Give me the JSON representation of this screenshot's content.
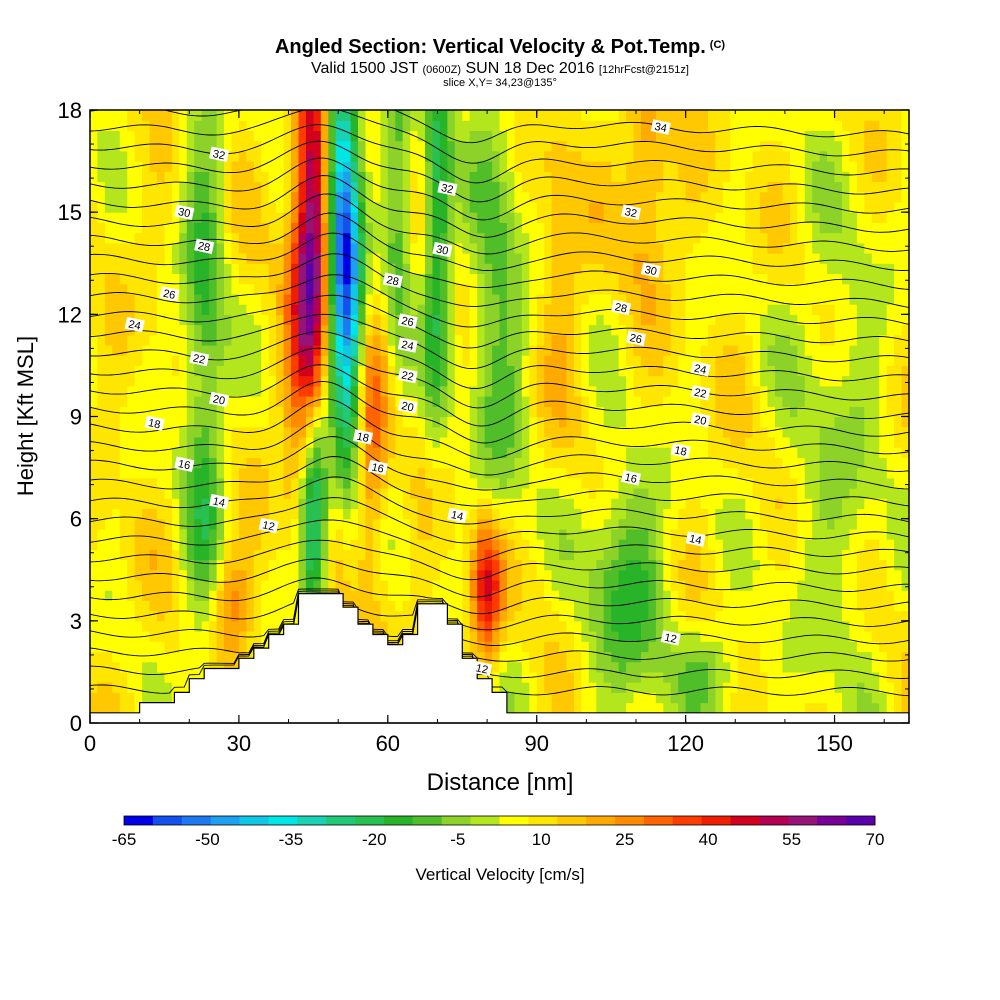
{
  "title": {
    "main": "Angled Section: Vertical Velocity & Pot.Temp.",
    "main_suffix": "(C)",
    "valid_pre": "Valid 1500 JST",
    "valid_utc": "(0600Z)",
    "valid_post": "SUN 18 Dec 2016",
    "valid_fcst": "[12hrFcst@2151z]",
    "slice": "slice X,Y= 34,23@135°"
  },
  "chart_data": {
    "type": "heatmap",
    "xlabel": "Distance [nm]",
    "ylabel": "Height [Kft MSL]",
    "xlim": [
      0,
      165
    ],
    "ylim": [
      0,
      18
    ],
    "x_ticks": [
      0,
      30,
      60,
      90,
      120,
      150
    ],
    "y_ticks": [
      0,
      3,
      6,
      9,
      12,
      15,
      18
    ],
    "colorbar": {
      "label": "Vertical Velocity [cm/s]",
      "min": -65,
      "max": 70,
      "step": 5,
      "tick_labels": [
        -65,
        -50,
        -35,
        -20,
        -5,
        10,
        25,
        40,
        55,
        70
      ],
      "colors": [
        "#0000e6",
        "#1450ee",
        "#1e78f0",
        "#1ea0f0",
        "#10c8e6",
        "#00e6e6",
        "#18d2b4",
        "#20c878",
        "#28c050",
        "#28b428",
        "#50be28",
        "#8cd228",
        "#b4e61e",
        "#ffff00",
        "#ffe600",
        "#ffc800",
        "#ffaa00",
        "#ff8c00",
        "#ff6400",
        "#ff3c00",
        "#f01e00",
        "#d2001e",
        "#b40050",
        "#961478",
        "#780096",
        "#5a00aa"
      ]
    },
    "terrain_profile_nm_kft": [
      [
        0,
        0.3
      ],
      [
        10,
        0.3
      ],
      [
        10,
        0.6
      ],
      [
        17,
        0.6
      ],
      [
        17,
        0.9
      ],
      [
        20,
        0.9
      ],
      [
        20,
        1.3
      ],
      [
        23,
        1.3
      ],
      [
        23,
        1.6
      ],
      [
        30,
        1.6
      ],
      [
        30,
        1.9
      ],
      [
        33,
        1.9
      ],
      [
        33,
        2.2
      ],
      [
        36,
        2.2
      ],
      [
        36,
        2.6
      ],
      [
        39,
        2.6
      ],
      [
        39,
        2.9
      ],
      [
        42,
        2.9
      ],
      [
        42,
        3.8
      ],
      [
        51,
        3.8
      ],
      [
        51,
        3.4
      ],
      [
        54,
        3.4
      ],
      [
        54,
        2.9
      ],
      [
        57,
        2.9
      ],
      [
        57,
        2.6
      ],
      [
        60,
        2.6
      ],
      [
        60,
        2.3
      ],
      [
        63,
        2.3
      ],
      [
        63,
        2.6
      ],
      [
        66,
        2.6
      ],
      [
        66,
        3.5
      ],
      [
        72,
        3.5
      ],
      [
        72,
        2.9
      ],
      [
        75,
        2.9
      ],
      [
        75,
        1.9
      ],
      [
        78,
        1.9
      ],
      [
        78,
        1.3
      ],
      [
        81,
        1.3
      ],
      [
        81,
        0.9
      ],
      [
        84,
        0.9
      ],
      [
        84,
        0.3
      ],
      [
        165,
        0.3
      ]
    ],
    "isentrope_labels": [
      {
        "text": "34",
        "x": 115,
        "y": 17.5
      },
      {
        "text": "32",
        "x": 26,
        "y": 16.7
      },
      {
        "text": "32",
        "x": 72,
        "y": 15.7
      },
      {
        "text": "32",
        "x": 109,
        "y": 15.0
      },
      {
        "text": "30",
        "x": 19,
        "y": 15.0
      },
      {
        "text": "30",
        "x": 71,
        "y": 13.9
      },
      {
        "text": "30",
        "x": 113,
        "y": 13.3
      },
      {
        "text": "28",
        "x": 23,
        "y": 14.0
      },
      {
        "text": "28",
        "x": 61,
        "y": 13.0
      },
      {
        "text": "28",
        "x": 107,
        "y": 12.2
      },
      {
        "text": "26",
        "x": 16,
        "y": 12.6
      },
      {
        "text": "26",
        "x": 64,
        "y": 11.8
      },
      {
        "text": "26",
        "x": 110,
        "y": 11.3
      },
      {
        "text": "24",
        "x": 9,
        "y": 11.7
      },
      {
        "text": "24",
        "x": 64,
        "y": 11.1
      },
      {
        "text": "24",
        "x": 123,
        "y": 10.4
      },
      {
        "text": "22",
        "x": 22,
        "y": 10.7
      },
      {
        "text": "22",
        "x": 64,
        "y": 10.2
      },
      {
        "text": "22",
        "x": 123,
        "y": 9.7
      },
      {
        "text": "20",
        "x": 26,
        "y": 9.5
      },
      {
        "text": "20",
        "x": 64,
        "y": 9.3
      },
      {
        "text": "20",
        "x": 123,
        "y": 8.9
      },
      {
        "text": "18",
        "x": 13,
        "y": 8.8
      },
      {
        "text": "18",
        "x": 55,
        "y": 8.4
      },
      {
        "text": "18",
        "x": 119,
        "y": 8.0
      },
      {
        "text": "16",
        "x": 19,
        "y": 7.6
      },
      {
        "text": "16",
        "x": 58,
        "y": 7.5
      },
      {
        "text": "16",
        "x": 109,
        "y": 7.2
      },
      {
        "text": "14",
        "x": 26,
        "y": 6.5
      },
      {
        "text": "14",
        "x": 74,
        "y": 6.1
      },
      {
        "text": "14",
        "x": 122,
        "y": 5.4
      },
      {
        "text": "12",
        "x": 36,
        "y": 5.8
      },
      {
        "text": "12",
        "x": 117,
        "y": 2.5
      },
      {
        "text": "12",
        "x": 79,
        "y": 1.6
      }
    ]
  }
}
